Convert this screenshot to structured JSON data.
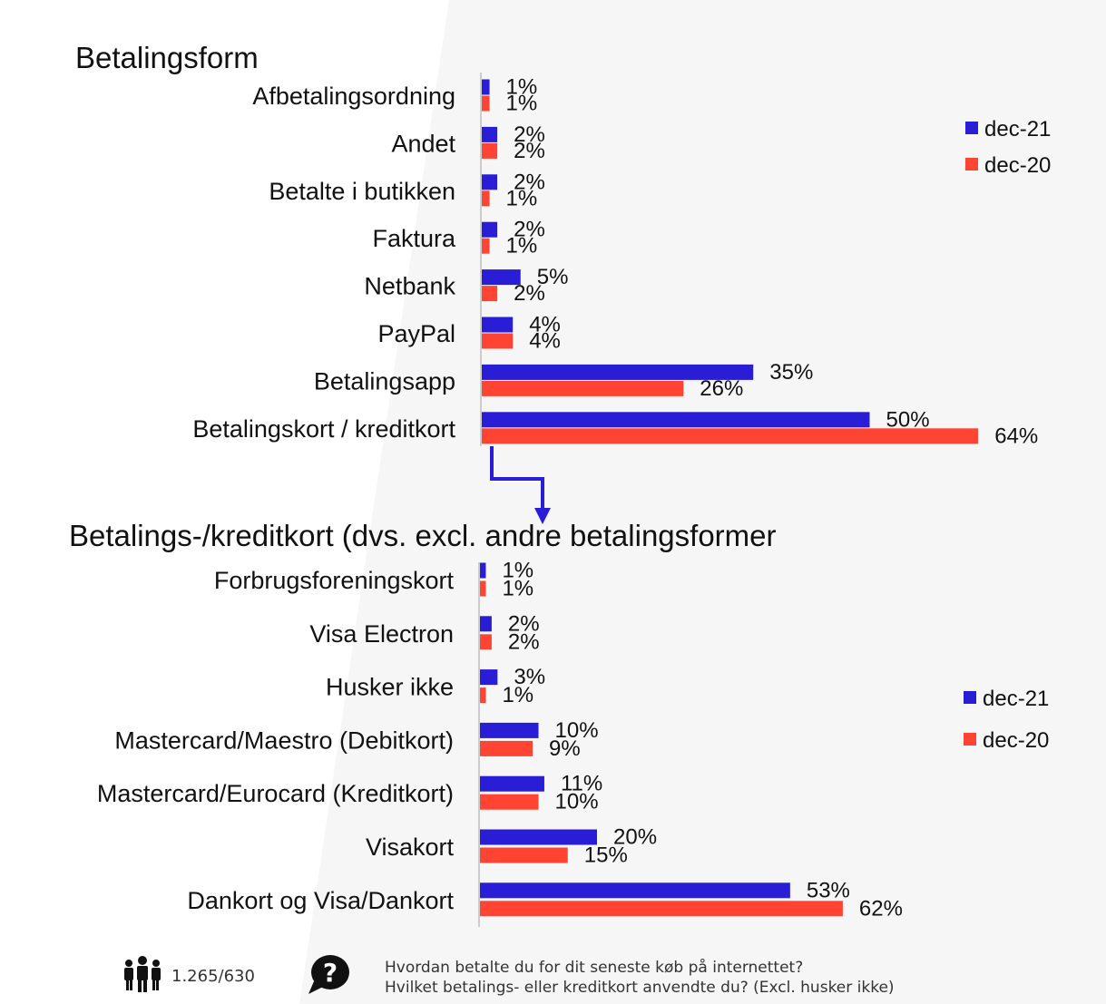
{
  "colors": {
    "dec21": "#2a1dd6",
    "dec20": "#ff4433",
    "text": "#111111",
    "axis": "#cccccc",
    "arrow": "#2a1dd6"
  },
  "chart_data": [
    {
      "type": "bar",
      "orientation": "horizontal",
      "title": "Betalingsform",
      "categories": [
        "Afbetalingsordning",
        "Andet",
        "Betalte i butikken",
        "Faktura",
        "Netbank",
        "PayPal",
        "Betalingsapp",
        "Betalingskort / kreditkort"
      ],
      "series": [
        {
          "name": "dec-21",
          "values": [
            1,
            2,
            2,
            2,
            5,
            4,
            35,
            50
          ],
          "labels": [
            "1%",
            "2%",
            "2%",
            "2%",
            "5%",
            "4%",
            "35%",
            "50%"
          ]
        },
        {
          "name": "dec-20",
          "values": [
            1,
            2,
            1,
            1,
            2,
            4,
            26,
            64
          ],
          "labels": [
            "1%",
            "2%",
            "1%",
            "1%",
            "2%",
            "4%",
            "26%",
            "64%"
          ]
        }
      ],
      "legend": [
        "dec-21",
        "dec-20"
      ],
      "xlim": [
        0,
        64
      ],
      "unit": "%"
    },
    {
      "type": "bar",
      "orientation": "horizontal",
      "title": "Betalings-/kreditkort (dvs. excl. andre betalingsformer",
      "categories": [
        "Forbrugsforeningskort",
        "Visa Electron",
        "Husker ikke",
        "Mastercard/Maestro (Debitkort)",
        "Mastercard/Eurocard (Kreditkort)",
        "Visakort",
        "Dankort og Visa/Dankort"
      ],
      "series": [
        {
          "name": "dec-21",
          "values": [
            1,
            2,
            3,
            10,
            11,
            20,
            53
          ],
          "labels": [
            "1%",
            "2%",
            "3%",
            "10%",
            "11%",
            "20%",
            "53%"
          ]
        },
        {
          "name": "dec-20",
          "values": [
            1,
            2,
            1,
            9,
            10,
            15,
            62
          ],
          "labels": [
            "1%",
            "2%",
            "1%",
            "9%",
            "10%",
            "15%",
            "62%"
          ]
        }
      ],
      "legend": [
        "dec-21",
        "dec-20"
      ],
      "xlim": [
        0,
        62
      ],
      "unit": "%"
    }
  ],
  "footer": {
    "people_icon": "people-icon",
    "sample_size": "1.265/630",
    "question_icon": "question-bubble-icon",
    "question_line1": "Hvordan betalte du for dit seneste køb på internettet?",
    "question_line2": "Hvilket betalings- eller kreditkort anvendte du? (Excl. husker ikke)"
  }
}
